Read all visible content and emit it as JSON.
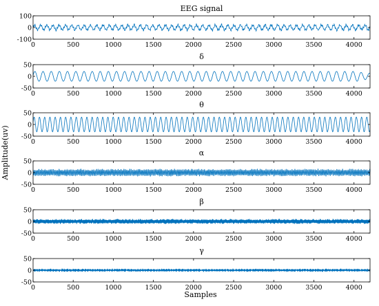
{
  "chart_data": [
    {
      "type": "line",
      "title": "EEG signal",
      "x_range": [
        0,
        4200
      ],
      "ylim": [
        -100,
        100
      ],
      "x_ticks": [
        0,
        500,
        1000,
        1500,
        2000,
        2500,
        3000,
        3500,
        4000
      ],
      "y_ticks": [
        100,
        0,
        -100
      ],
      "color": "#0072BD",
      "approx_peak_amplitude": 30
    },
    {
      "type": "line",
      "title": "δ",
      "x_range": [
        0,
        4200
      ],
      "ylim": [
        -50,
        50
      ],
      "x_ticks": [
        0,
        500,
        1000,
        1500,
        2000,
        2500,
        3000,
        3500,
        4000
      ],
      "y_ticks": [
        50,
        0,
        -50
      ],
      "color": "#0072BD",
      "approx_peak_amplitude": 20
    },
    {
      "type": "line",
      "title": "θ",
      "x_range": [
        0,
        4200
      ],
      "ylim": [
        -50,
        50
      ],
      "x_ticks": [
        0,
        500,
        1000,
        1500,
        2000,
        2500,
        3000,
        3500,
        4000
      ],
      "y_ticks": [
        50,
        0,
        -50
      ],
      "color": "#0072BD",
      "approx_peak_amplitude": 30
    },
    {
      "type": "line",
      "title": "α",
      "x_range": [
        0,
        4200
      ],
      "ylim": [
        -50,
        50
      ],
      "x_ticks": [
        0,
        500,
        1000,
        1500,
        2000,
        2500,
        3000,
        3500,
        4000
      ],
      "y_ticks": [
        50,
        0,
        -50
      ],
      "color": "#0072BD",
      "approx_peak_amplitude": 12
    },
    {
      "type": "line",
      "title": "β",
      "x_range": [
        0,
        4200
      ],
      "ylim": [
        -50,
        50
      ],
      "x_ticks": [
        0,
        500,
        1000,
        1500,
        2000,
        2500,
        3000,
        3500,
        4000
      ],
      "y_ticks": [
        50,
        0,
        -50
      ],
      "color": "#0072BD",
      "approx_peak_amplitude": 8
    },
    {
      "type": "line",
      "title": "γ",
      "x_range": [
        0,
        4200
      ],
      "ylim": [
        -50,
        50
      ],
      "x_ticks": [
        0,
        500,
        1000,
        1500,
        2000,
        2500,
        3000,
        3500,
        4000
      ],
      "y_ticks": [
        50,
        0,
        -50
      ],
      "color": "#0072BD",
      "approx_peak_amplitude": 5
    }
  ],
  "figure": {
    "ylabel": "Amplitude(uv)",
    "xlabel": "Samples"
  }
}
